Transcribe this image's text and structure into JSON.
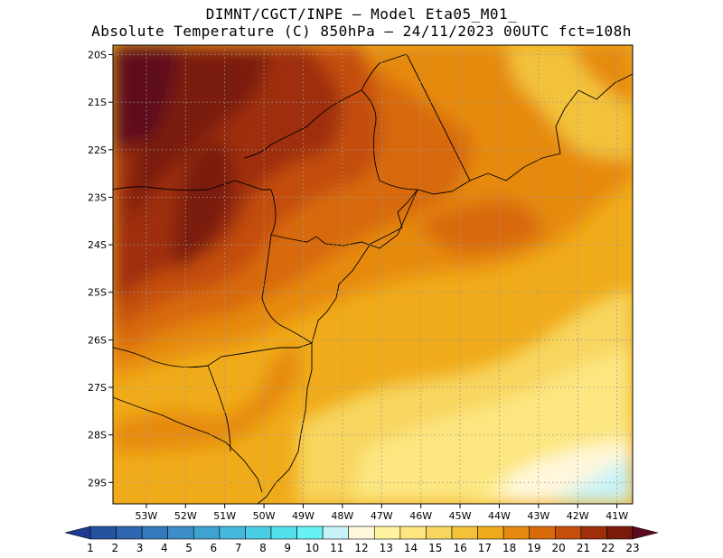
{
  "header": {
    "line1": "DIMNT/CGCT/INPE –  Model Eta05_M01_",
    "line2": "Absolute Temperature (C) 850hPa –  24/11/2023 00UTC fct=108h"
  },
  "map": {
    "lon_range": [
      -53.85,
      -40.6
    ],
    "lat_range": [
      -29.45,
      -19.8
    ],
    "lat_labels": [
      "20S",
      "21S",
      "22S",
      "23S",
      "24S",
      "25S",
      "26S",
      "27S",
      "28S",
      "29S"
    ],
    "lon_labels": [
      "53W",
      "52W",
      "51W",
      "50W",
      "49W",
      "48W",
      "47W",
      "46W",
      "45W",
      "44W",
      "43W",
      "42W",
      "41W"
    ],
    "grid_lines": true
  },
  "colorbar": {
    "labels": [
      "1",
      "2",
      "3",
      "4",
      "5",
      "6",
      "7",
      "8",
      "9",
      "10",
      "11",
      "12",
      "13",
      "14",
      "15",
      "16",
      "17",
      "18",
      "19",
      "20",
      "21",
      "22",
      "23"
    ],
    "colors": [
      "#1f3a93",
      "#2553a0",
      "#2e66b0",
      "#3479bb",
      "#3b8ec6",
      "#3fa3d2",
      "#46b8dd",
      "#4ccde6",
      "#55e0ee",
      "#66f2f5",
      "#c8f3f7",
      "#fff7dc",
      "#fff3a0",
      "#fde680",
      "#f8d65e",
      "#f3c23b",
      "#f0ab1a",
      "#e68a10",
      "#d86a0c",
      "#c44e0a",
      "#9e2f08",
      "#7a1a0a",
      "#5e0a1e"
    ]
  }
}
